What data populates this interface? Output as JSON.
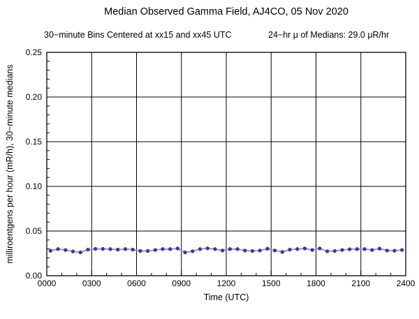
{
  "chart_data": {
    "type": "line",
    "title": "Median Observed Gamma Field, AJ4CO, 05 Nov 2020",
    "subtitle_left": "30−minute Bins Centered at xx15 and xx45 UTC",
    "subtitle_right": "24−hr μ of Medians: 29.0 μR/hr",
    "mean_of_medians_uR_hr": 29.0,
    "xlabel": "Time (UTC)",
    "ylabel": "milliroentgens per hour (mR/h), 30−minute medians",
    "xlim_hours": [
      0,
      24
    ],
    "ylim": [
      0,
      0.25
    ],
    "grid": true,
    "legend": "none",
    "x_major_ticks": {
      "hours": [
        0,
        3,
        6,
        9,
        12,
        15,
        18,
        21,
        24
      ],
      "labels": [
        "0000",
        "0300",
        "0600",
        "0900",
        "1200",
        "1500",
        "1800",
        "2100",
        "2400"
      ]
    },
    "x_minor_step_hours": 1,
    "y_major_ticks": {
      "values": [
        0,
        0.05,
        0.1,
        0.15,
        0.2,
        0.25
      ],
      "labels": [
        "0.00",
        "0.05",
        "0.10",
        "0.15",
        "0.20",
        "0.25"
      ]
    },
    "y_minor_step": 0.01,
    "colors": {
      "marker": "#3b3b9b",
      "line": "#9797cf",
      "axis": "#000000",
      "grid": "#000000",
      "background": "#ffffff"
    },
    "series": [
      {
        "name": "30-minute median gamma field (mR/h)",
        "times": [
          "0015",
          "0045",
          "0115",
          "0145",
          "0215",
          "0245",
          "0315",
          "0345",
          "0415",
          "0445",
          "0515",
          "0545",
          "0615",
          "0645",
          "0715",
          "0745",
          "0815",
          "0845",
          "0915",
          "0945",
          "1015",
          "1045",
          "1115",
          "1145",
          "1215",
          "1245",
          "1315",
          "1345",
          "1415",
          "1445",
          "1515",
          "1545",
          "1615",
          "1645",
          "1715",
          "1745",
          "1815",
          "1845",
          "1915",
          "1945",
          "2015",
          "2045",
          "2115",
          "2145",
          "2215",
          "2245",
          "2315",
          "2345"
        ],
        "values": [
          0.028,
          0.0298,
          0.0288,
          0.0272,
          0.0261,
          0.0292,
          0.03,
          0.03,
          0.0298,
          0.0292,
          0.0298,
          0.0292,
          0.0277,
          0.0277,
          0.0288,
          0.0298,
          0.0298,
          0.0305,
          0.0261,
          0.0274,
          0.0298,
          0.0306,
          0.0298,
          0.0282,
          0.0298,
          0.0298,
          0.0282,
          0.0277,
          0.0282,
          0.0302,
          0.0282,
          0.0266,
          0.0292,
          0.0298,
          0.0305,
          0.0288,
          0.0305,
          0.0274,
          0.0277,
          0.0288,
          0.0296,
          0.0298,
          0.0298,
          0.0288,
          0.0303,
          0.0282,
          0.028,
          0.0288
        ]
      }
    ]
  }
}
